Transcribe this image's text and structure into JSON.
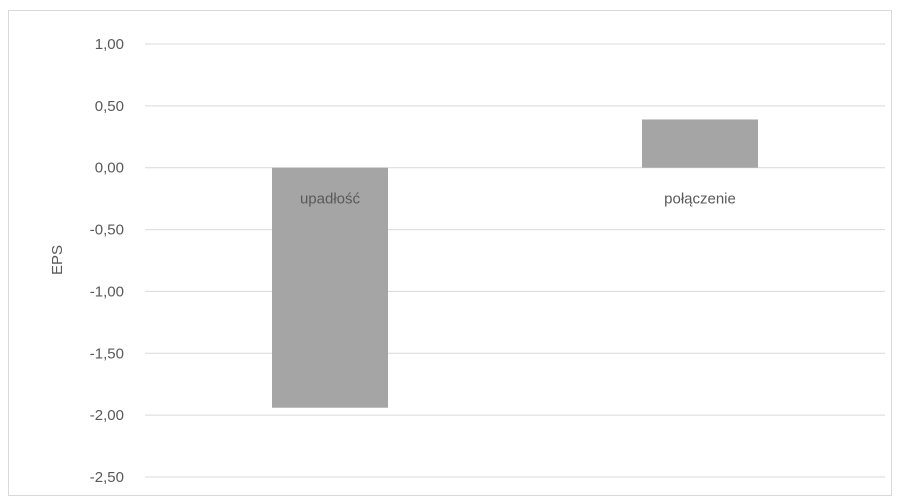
{
  "chart_data": {
    "type": "bar",
    "categories": [
      "upadłość",
      "połączenie"
    ],
    "values": [
      -1.94,
      0.39
    ],
    "ylabel": "EPS",
    "ylim": [
      -2.5,
      1.0
    ],
    "yticks": [
      1.0,
      0.5,
      0.0,
      -0.5,
      -1.0,
      -1.5,
      -2.0,
      -2.5
    ],
    "ytick_labels": [
      "1,00",
      "0,50",
      "0,00",
      "-0,50",
      "-1,00",
      "-1,50",
      "-2,00",
      "-2,50"
    ],
    "grid": true,
    "bar_color": "#a5a5a5",
    "grid_color": "#d9d9d9",
    "label_color": "#595959"
  }
}
